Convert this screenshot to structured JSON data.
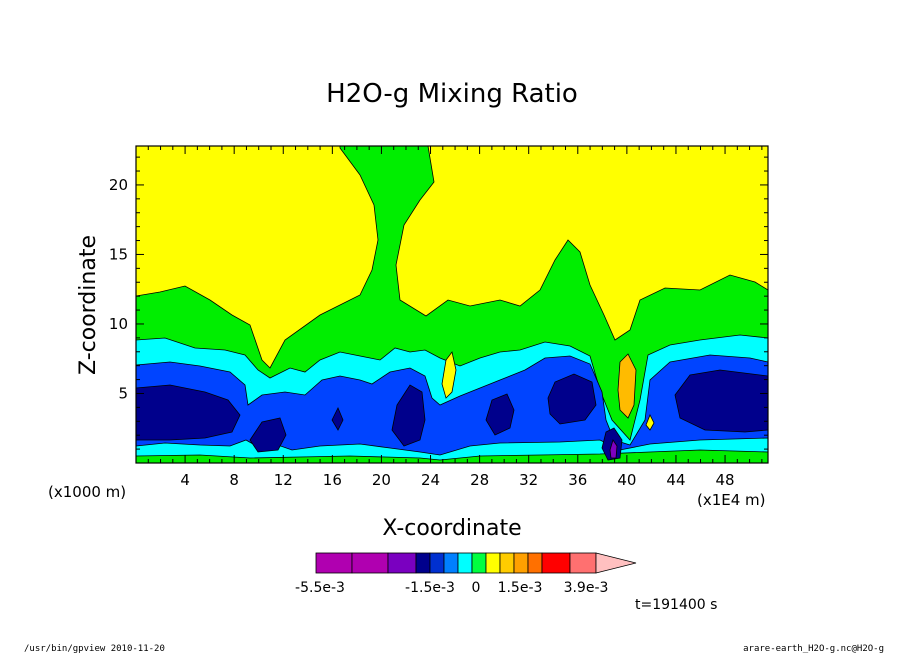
{
  "chart_data": {
    "type": "heatmap",
    "title": "H2O-g Mixing Ratio",
    "xlabel": "X-coordinate",
    "ylabel": "Z-coordinate",
    "x_unit_left": "(x1000 m)",
    "x_unit_right": "(x1E4 m)",
    "x_ticks": [
      "4",
      "8",
      "12",
      "16",
      "20",
      "24",
      "28",
      "32",
      "36",
      "40",
      "44",
      "48"
    ],
    "y_ticks": [
      "5",
      "10",
      "15",
      "20"
    ],
    "xlim": [
      0,
      51.5
    ],
    "ylim": [
      0,
      22.8
    ],
    "time_label": "t=191400 s",
    "colorbar": {
      "colors": [
        "#b000b0",
        "#b000b0",
        "#7a00c0",
        "#00008c",
        "#0030d0",
        "#0080ff",
        "#00ffff",
        "#00ff40",
        "#ffff00",
        "#ffcc00",
        "#ffa000",
        "#ff7000",
        "#ff0000",
        "#ff7070",
        "#ffc0c0"
      ],
      "labels": [
        "-5.5e-3",
        "-1.5e-3",
        "0",
        "1.5e-3",
        "3.9e-3"
      ]
    },
    "field_colors": {
      "yellow": "#ffff00",
      "green": "#00ee00",
      "cyan": "#00ffff",
      "blue": "#0044ff",
      "navy": "#00008c",
      "orange": "#ffbb00",
      "purple": "#8000c0"
    }
  },
  "footer": {
    "left": "/usr/bin/gpview  2010-11-20",
    "right": "arare-earth_H2O-g.nc@H2O-g"
  }
}
